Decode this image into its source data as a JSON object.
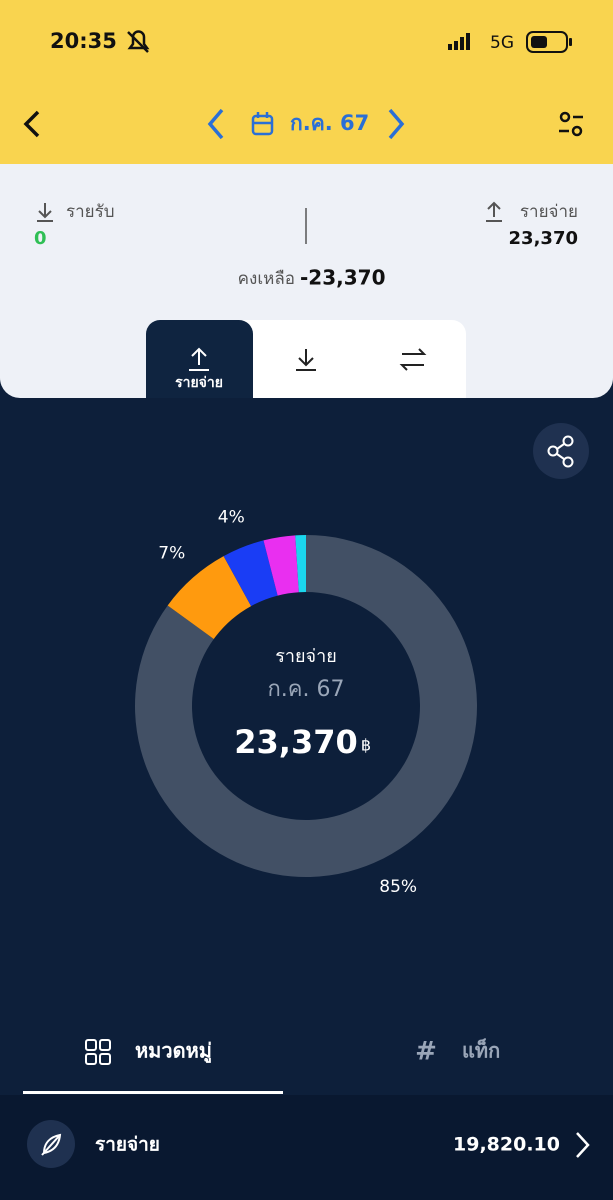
{
  "status_bar": {
    "time": "20:35",
    "network": "5G"
  },
  "header": {
    "period": "ก.ค. 67"
  },
  "summary": {
    "income_label": "รายรับ",
    "income": "0",
    "expense_label": "รายจ่าย",
    "expense": "23,370",
    "balance_label": "คงเหลือ",
    "balance": "-23,370"
  },
  "tabs": {
    "active": "รายจ่าย"
  },
  "chart_data": {
    "type": "donut",
    "categories": [
      null,
      null,
      null,
      null,
      null
    ],
    "values": [
      85,
      7,
      4,
      3,
      1
    ],
    "value_labels": [
      "85%",
      "7%",
      "4%",
      null,
      null
    ],
    "colors": [
      "#425065",
      "#ff9a0e",
      "#1a3df5",
      "#e92ff0",
      "#1bd6ee"
    ],
    "center_title": "รายจ่าย",
    "center_subtitle": "ก.ค. 67",
    "center_value": "23,370",
    "center_unit": "฿"
  },
  "bottom_tabs": [
    "หมวดหมู่",
    "แท็ก"
  ],
  "list": [
    {
      "name": "รายจ่าย",
      "amount": "19,820.10"
    }
  ]
}
